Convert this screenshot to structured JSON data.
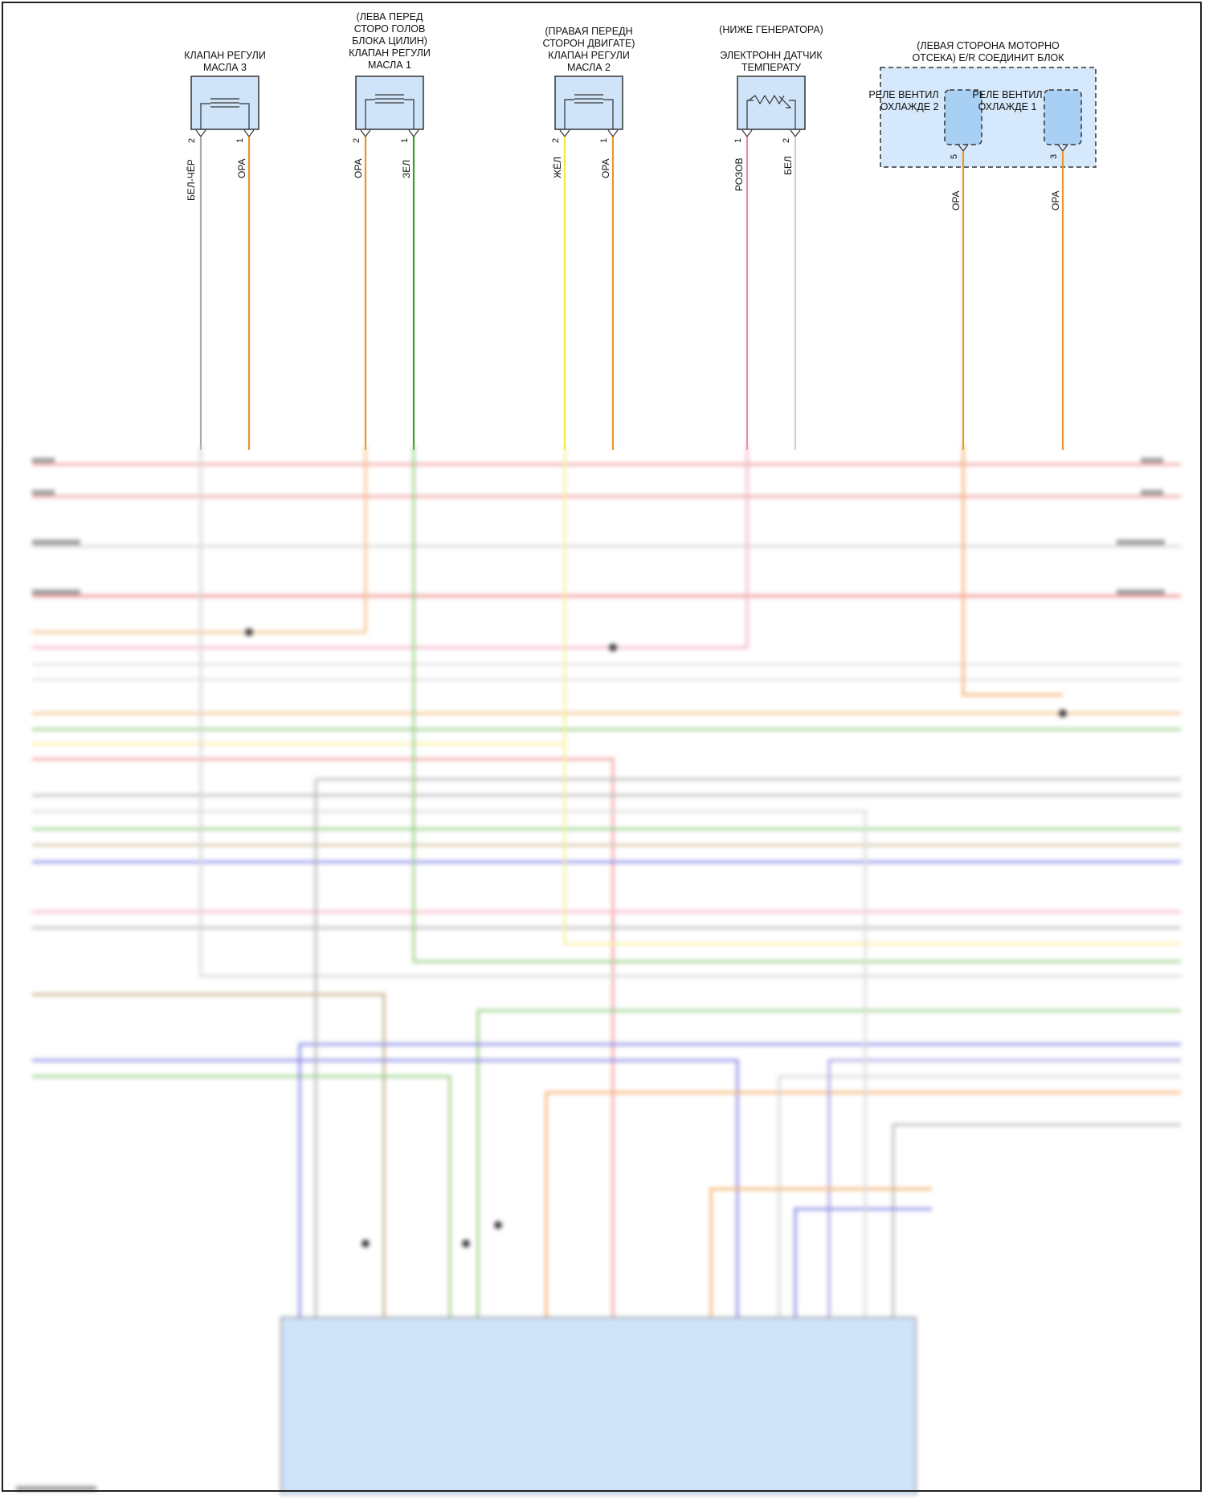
{
  "components": {
    "oil_valve_3": {
      "title": "КЛАПАН РЕГУЛИ\nМАСЛА 3",
      "pin_left": "2",
      "pin_right": "1",
      "wire_left": "БЕЛ-ЧЁР",
      "wire_right": "ОРА"
    },
    "oil_valve_1": {
      "title": "(ЛЕВА ПЕРЕД\nСТОРО ГОЛОВ\nБЛОКА ЦИЛИН)\nКЛАПАН РЕГУЛИ\nМАСЛА 1",
      "pin_left": "2",
      "pin_right": "1",
      "wire_left": "ОРА",
      "wire_right": "ЗЕЛ"
    },
    "oil_valve_2": {
      "title": "(ПРАВАЯ ПЕРЕДН\nСТОРОН ДВИГАТЕ)\nКЛАПАН РЕГУЛИ\nМАСЛА 2",
      "pin_left": "2",
      "pin_right": "1",
      "wire_left": "ЖЁЛ",
      "wire_right": "ОРА"
    },
    "temp_sensor": {
      "title_top": "(НИЖЕ ГЕНЕРАТОРА)",
      "title": "ЭЛЕКТРОНН ДАТЧИК\nТЕМПЕРАТУ",
      "pin_left": "1",
      "pin_right": "2",
      "wire_left": "РОЗОВ",
      "wire_right": "БЕЛ"
    },
    "er_block": {
      "title": "(ЛЕВАЯ СТОРОНА МОТОРНО\nОТСЕКА) E/R СОЕДИНИТ БЛОК",
      "relay2": "РЕЛЕ ВЕНТИЛ\nОХЛАЖДЕ 2",
      "relay1": "РЕЛЕ ВЕНТИЛ\nОХЛАЖДЕ 1",
      "pin_relay2": "5",
      "pin_relay1": "3",
      "wire_relay2": "ОРА",
      "wire_relay1": "ОРА"
    }
  },
  "colors": {
    "ora": "#e8962a",
    "green": "#3aa02a",
    "yellow": "#f2ea40",
    "gray": "#a9a9a9",
    "pink": "#e98aa8",
    "lightgray": "#cfcfcf",
    "red": "#e85a5a",
    "blue": "#5a5ae0",
    "tan": "#c8b08a",
    "block": "#cfe3f9"
  }
}
